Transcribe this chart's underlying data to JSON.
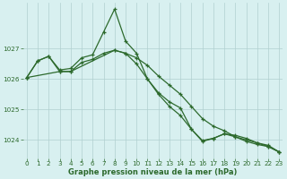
{
  "line_spike": {
    "x": [
      0,
      1,
      2,
      3,
      4,
      5,
      6,
      7,
      8,
      9,
      10,
      11,
      12,
      13,
      14,
      15,
      16,
      17,
      18,
      19,
      20,
      21,
      22,
      23
    ],
    "y": [
      1026.05,
      1026.6,
      1026.75,
      1026.3,
      1026.35,
      1026.7,
      1026.8,
      1027.55,
      1028.3,
      1027.25,
      1026.85,
      1026.0,
      1025.55,
      1025.25,
      1025.05,
      1024.35,
      1023.95,
      1024.05,
      1024.2,
      1024.15,
      1024.05,
      1023.9,
      1023.82,
      1023.6
    ]
  },
  "line_smooth": {
    "x": [
      0,
      1,
      2,
      3,
      4,
      5,
      6,
      7,
      8,
      9,
      10,
      11,
      12,
      13,
      14,
      15,
      16,
      17,
      18,
      19,
      20,
      21,
      22,
      23
    ],
    "y": [
      1026.05,
      1026.6,
      1026.75,
      1026.25,
      1026.25,
      1026.55,
      1026.65,
      1026.85,
      1026.95,
      1026.85,
      1026.7,
      1026.45,
      1026.1,
      1025.8,
      1025.5,
      1025.1,
      1024.7,
      1024.45,
      1024.3,
      1024.1,
      1023.95,
      1023.85,
      1023.78,
      1023.6
    ]
  },
  "line_linear": {
    "x": [
      0,
      3,
      4,
      8,
      9,
      10,
      11,
      12,
      13,
      14,
      15,
      16,
      17,
      18,
      19,
      20,
      21,
      22,
      23
    ],
    "y": [
      1026.05,
      1026.25,
      1026.25,
      1026.95,
      1026.85,
      1026.5,
      1026.0,
      1025.5,
      1025.1,
      1024.8,
      1024.35,
      1023.98,
      1024.05,
      1024.2,
      1024.1,
      1024.0,
      1023.9,
      1023.78,
      1023.6
    ]
  },
  "color": "#2d6a2d",
  "bg_color": "#d8f0f0",
  "grid_color": "#b0d0d0",
  "xlabel": "Graphe pression niveau de la mer (hPa)",
  "ylim": [
    1023.4,
    1028.5
  ],
  "xlim": [
    -0.3,
    23.3
  ],
  "yticks": [
    1024,
    1025,
    1026,
    1027
  ],
  "xticks": [
    0,
    1,
    2,
    3,
    4,
    5,
    6,
    7,
    8,
    9,
    10,
    11,
    12,
    13,
    14,
    15,
    16,
    17,
    18,
    19,
    20,
    21,
    22,
    23
  ],
  "xlabel_fontsize": 6.0,
  "tick_fontsize": 5.2
}
